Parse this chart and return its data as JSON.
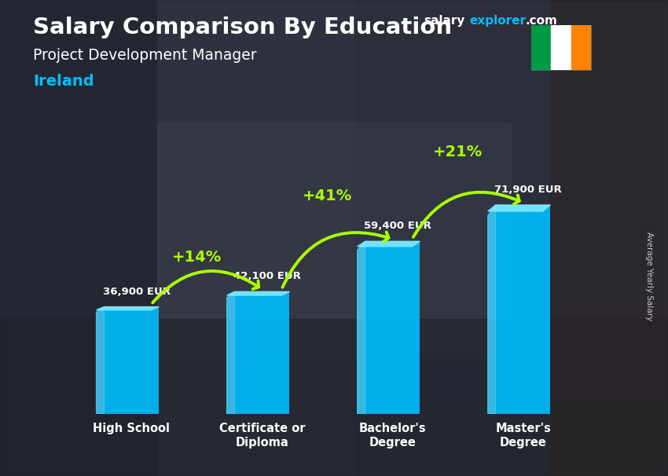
{
  "title1": "Salary Comparison By Education",
  "title2": "Project Development Manager",
  "title3": "Ireland",
  "ylabel": "Average Yearly Salary",
  "categories": [
    "High School",
    "Certificate or\nDiploma",
    "Bachelor's\nDegree",
    "Master's\nDegree"
  ],
  "values": [
    36900,
    42100,
    59400,
    71900
  ],
  "labels": [
    "36,900 EUR",
    "42,100 EUR",
    "59,400 EUR",
    "71,900 EUR"
  ],
  "pct_changes": [
    "+14%",
    "+41%",
    "+21%"
  ],
  "bar_color": "#00BFFF",
  "bar_left_color": "#40D0FF",
  "bar_top_color": "#80E8FF",
  "pct_color": "#AAFF00",
  "title1_color": "#FFFFFF",
  "title2_color": "#FFFFFF",
  "title3_color": "#00BFFF",
  "label_color": "#FFFFFF",
  "arrow_color": "#AAFF00",
  "ylim": [
    0,
    90000
  ],
  "flag_green": "#009A44",
  "flag_white": "#FFFFFF",
  "flag_orange": "#FF8200",
  "website_color_salary": "#FFFFFF",
  "website_color_explorer": "#00BFFF",
  "website_color_com": "#FFFFFF"
}
